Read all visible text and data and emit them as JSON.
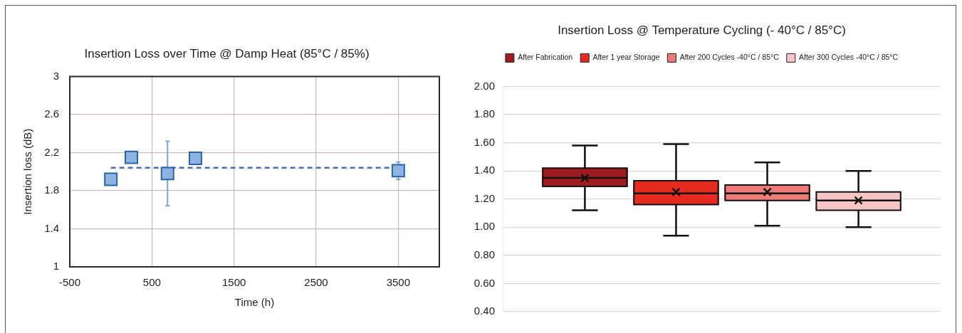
{
  "chart_data": [
    {
      "type": "scatter",
      "title": "Insertion Loss over Time @ Damp Heat (85°C / 85%)",
      "xlabel": "Time (h)",
      "ylabel": "Insertion loss (dB)",
      "series": [
        {
          "type": "scatter",
          "color": "#8db3e2",
          "marker": "square",
          "x": [
            0,
            250,
            690,
            1030,
            3500
          ],
          "values": [
            1.92,
            2.15,
            1.98,
            2.14,
            2.01
          ],
          "errors": [
            null,
            null,
            0.34,
            null,
            0.09
          ]
        },
        {
          "type": "line",
          "color": "#4a6da8",
          "line_style": "dashed",
          "marker": "none",
          "x": [
            0,
            3500
          ],
          "values": [
            2.04,
            2.04
          ]
        }
      ],
      "xlim": [
        -500,
        4000
      ],
      "xticks": [
        -500,
        500,
        1500,
        2500,
        3500
      ],
      "ylim": [
        1,
        3
      ],
      "yticks": [
        1,
        1.4,
        1.8,
        2.2,
        2.6,
        3
      ],
      "grid": true
    },
    {
      "type": "box",
      "title": "Insertion Loss @ Temperature Cycling (- 40°C / 85°C)",
      "categories": [
        null
      ],
      "series": [
        {
          "name": "After Fabrication",
          "color": "#9e1b1f",
          "boxes": [
            {
              "low": 1.12,
              "q1": 1.29,
              "median": 1.35,
              "q3": 1.42,
              "high": 1.58,
              "mean": 1.35
            }
          ]
        },
        {
          "name": "After 1 year Storage",
          "color": "#e52b20",
          "boxes": [
            {
              "low": 0.94,
              "q1": 1.16,
              "median": 1.24,
              "q3": 1.33,
              "high": 1.59,
              "mean": 1.25
            }
          ]
        },
        {
          "name": "After 200 Cycles -40°C / 85°C",
          "color": "#ee7b78",
          "boxes": [
            {
              "low": 1.01,
              "q1": 1.19,
              "median": 1.24,
              "q3": 1.3,
              "high": 1.46,
              "mean": 1.25
            }
          ]
        },
        {
          "name": "After 300 Cycles -40°C / 85°C",
          "color": "#f7c5c5",
          "boxes": [
            {
              "low": 1.0,
              "q1": 1.12,
              "median": 1.19,
              "q3": 1.25,
              "high": 1.4,
              "mean": 1.19
            }
          ]
        }
      ],
      "ylim": [
        0.4,
        2
      ],
      "yticks": [
        {
          "value": 0.4,
          "label": "0.40"
        },
        {
          "value": 0.6,
          "label": "0.60"
        },
        {
          "value": 0.8,
          "label": "0.80"
        },
        {
          "value": 1,
          "label": "1.00"
        },
        {
          "value": 1.2,
          "label": "1.20"
        },
        {
          "value": 1.4,
          "label": "1.40"
        },
        {
          "value": 1.6,
          "label": "1.60"
        },
        {
          "value": 1.8,
          "label": "1.80"
        },
        {
          "value": 2,
          "label": "2.00"
        }
      ],
      "grid": "y",
      "legend": "top",
      "tick_labels": "y"
    }
  ]
}
